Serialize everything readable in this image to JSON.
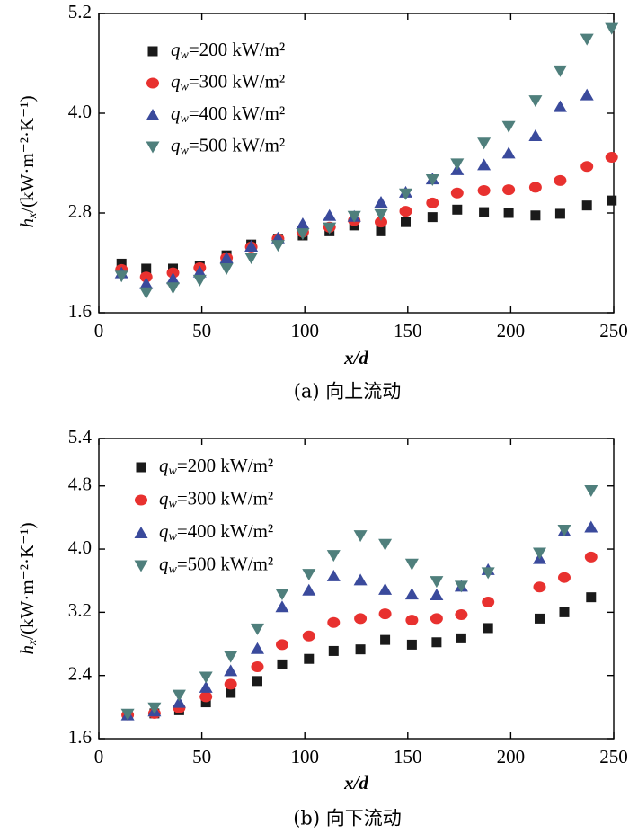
{
  "chart_data": [
    {
      "type": "scatter",
      "caption": "(a) 向上流动",
      "xlabel": "x/d",
      "ylabel": "hx/(kW·m⁻²·K⁻¹)",
      "xlim": [
        0,
        250
      ],
      "xticks": [
        0,
        50,
        100,
        150,
        200,
        250
      ],
      "ylim": [
        1.6,
        5.2
      ],
      "yticks": [
        1.6,
        2.8,
        4.0,
        5.2
      ],
      "legend": "upper left",
      "x": [
        11,
        23,
        36,
        49,
        62,
        74,
        87,
        99,
        112,
        124,
        137,
        149,
        162,
        174,
        187,
        199,
        212,
        224,
        237,
        249
      ],
      "series": [
        {
          "name": "qw=200 kW/m²",
          "color": "#1a1a1a",
          "marker": "square",
          "values": [
            2.19,
            2.13,
            2.13,
            2.16,
            2.29,
            2.42,
            2.49,
            2.53,
            2.58,
            2.65,
            2.58,
            2.69,
            2.75,
            2.84,
            2.81,
            2.8,
            2.77,
            2.79,
            2.89,
            2.95
          ]
        },
        {
          "name": "qw=300 kW/m²",
          "color": "#e8312f",
          "marker": "circle",
          "values": [
            2.12,
            2.03,
            2.08,
            2.14,
            2.26,
            2.39,
            2.49,
            2.57,
            2.63,
            2.71,
            2.69,
            2.82,
            2.92,
            3.04,
            3.07,
            3.08,
            3.11,
            3.19,
            3.36,
            3.47
          ]
        },
        {
          "name": "qw=400 kW/m²",
          "color": "#3a4a9c",
          "marker": "triangle-up",
          "values": [
            2.08,
            1.95,
            2.01,
            2.09,
            2.26,
            2.4,
            2.5,
            2.67,
            2.77,
            2.76,
            2.93,
            3.05,
            3.21,
            3.32,
            3.38,
            3.52,
            3.73,
            4.08,
            4.22,
            null
          ]
        },
        {
          "name": "qw=500 kW/m²",
          "color": "#4f7f7c",
          "marker": "triangle-down",
          "values": [
            2.04,
            1.84,
            1.9,
            1.99,
            2.13,
            2.26,
            2.41,
            2.55,
            2.62,
            2.76,
            2.78,
            3.03,
            3.2,
            3.39,
            3.64,
            3.84,
            4.15,
            4.51,
            4.89,
            5.02
          ]
        }
      ]
    },
    {
      "type": "scatter",
      "caption": "(b) 向下流动",
      "xlabel": "x/d",
      "ylabel": "hx/(kW·m⁻²·K⁻¹)",
      "xlim": [
        0,
        250
      ],
      "xticks": [
        0,
        50,
        100,
        150,
        200,
        250
      ],
      "ylim": [
        1.6,
        5.4
      ],
      "yticks": [
        1.6,
        2.4,
        3.2,
        4.0,
        4.8,
        5.4
      ],
      "legend": "upper left",
      "x": [
        14,
        27,
        39,
        52,
        64,
        77,
        89,
        102,
        114,
        127,
        139,
        152,
        164,
        176,
        189,
        214,
        226,
        239
      ],
      "series": [
        {
          "name": "qw=200 kW/m²",
          "color": "#1a1a1a",
          "marker": "square",
          "values": [
            1.9,
            1.92,
            1.96,
            2.06,
            2.18,
            2.33,
            2.54,
            2.61,
            2.71,
            2.73,
            2.85,
            2.79,
            2.82,
            2.87,
            3.0,
            3.12,
            3.2,
            3.39
          ]
        },
        {
          "name": "qw=300 kW/m²",
          "color": "#e8312f",
          "marker": "circle",
          "values": [
            1.9,
            1.92,
            1.99,
            2.13,
            2.29,
            2.51,
            2.79,
            2.9,
            3.07,
            3.12,
            3.18,
            3.1,
            3.12,
            3.17,
            3.33,
            3.52,
            3.64,
            3.9
          ]
        },
        {
          "name": "qw=400 kW/m²",
          "color": "#3a4a9c",
          "marker": "triangle-up",
          "values": [
            1.9,
            1.95,
            2.06,
            2.25,
            2.46,
            2.74,
            3.27,
            3.48,
            3.66,
            3.61,
            3.49,
            3.43,
            3.42,
            3.53,
            3.74,
            3.88,
            4.23,
            4.28
          ]
        },
        {
          "name": "qw=500 kW/m²",
          "color": "#4f7f7c",
          "marker": "triangle-down",
          "values": [
            1.91,
            1.99,
            2.15,
            2.38,
            2.64,
            2.99,
            3.43,
            3.68,
            3.92,
            4.17,
            4.06,
            3.81,
            3.59,
            3.53,
            3.7,
            3.95,
            4.24,
            4.74
          ]
        }
      ]
    }
  ]
}
